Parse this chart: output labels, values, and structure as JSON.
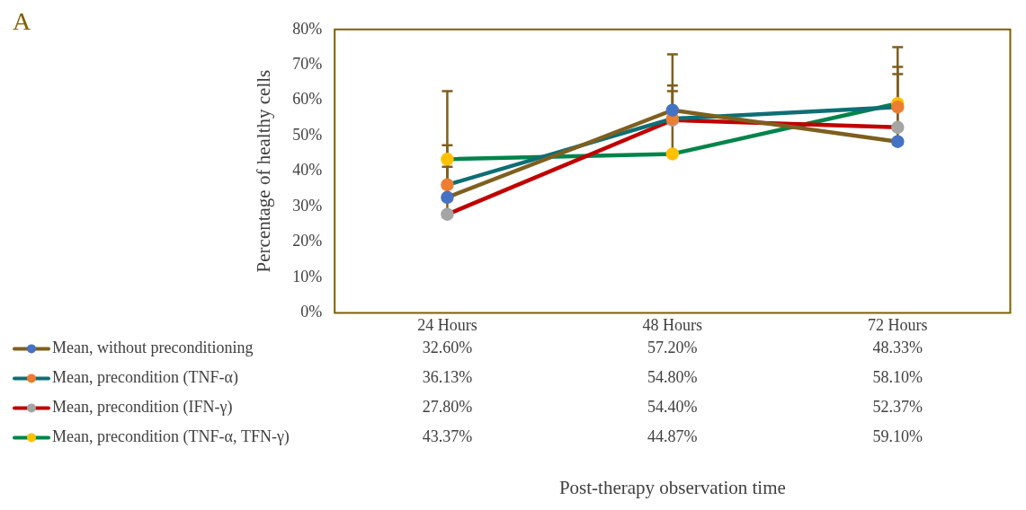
{
  "chart_data": {
    "type": "line",
    "title": "A",
    "ylabel": "Percentage of healthy cells",
    "annotations": [
      "Post-therapy observation time"
    ],
    "categories": [
      "24 Hours",
      "48 Hours",
      "72 Hours"
    ],
    "ylim": [
      0,
      80
    ],
    "yticks": [
      {
        "value": 0,
        "label": "0%"
      },
      {
        "value": 10,
        "label": "10%"
      },
      {
        "value": 20,
        "label": "20%"
      },
      {
        "value": 30,
        "label": "30%"
      },
      {
        "value": 40,
        "label": "40%"
      },
      {
        "value": 50,
        "label": "50%"
      },
      {
        "value": 60,
        "label": "60%"
      },
      {
        "value": 70,
        "label": "70%"
      },
      {
        "value": 80,
        "label": "80%"
      }
    ],
    "grid": false,
    "legend": "bottom left",
    "marker": "circle",
    "line_style": "solid",
    "series": [
      {
        "name": "Mean, without preconditioning",
        "color": "#7f5f1f",
        "colors": [
          "#4472c4",
          "#4472c4",
          "#4472c4"
        ],
        "values": [
          32.6,
          57.2,
          48.33
        ],
        "value_labels": [
          "32.60%",
          "57.20%",
          "48.33%"
        ],
        "errors": [
          [
            32.6,
            41.2
          ],
          [
            57.2,
            64.2
          ],
          [
            48.33,
            75.0
          ]
        ]
      },
      {
        "name": "Mean, precondition (TNF-α)",
        "color": "#0e6e74",
        "colors": [
          "#ed7d31",
          "#ed7d31",
          "#ed7d31"
        ],
        "values": [
          36.13,
          54.8,
          58.1
        ],
        "value_labels": [
          "36.13%",
          "54.80%",
          "58.10%"
        ],
        "errors": [
          [
            36.13,
            47.3
          ],
          [
            54.8,
            62.6
          ],
          [
            58.1,
            69.4
          ]
        ]
      },
      {
        "name": "Mean, precondition (IFN-γ)",
        "color": "#c00000",
        "colors": [
          "#a5a5a5",
          "#a5a5a5",
          "#a5a5a5"
        ],
        "values": [
          27.8,
          54.4,
          52.37
        ],
        "value_labels": [
          "27.80%",
          "54.40%",
          "52.37%"
        ],
        "errors": [
          [
            27.8,
            62.6
          ],
          null,
          [
            52.37,
            67.4
          ]
        ]
      },
      {
        "name": "Mean, precondition (TNF-α, TFN-γ)",
        "color": "#00844a",
        "colors": [
          "#ffc000",
          "#ffc000",
          "#ffc000"
        ],
        "values": [
          43.37,
          44.87,
          59.1
        ],
        "value_labels": [
          "43.37%",
          "44.87%",
          "59.10%"
        ],
        "errors": [
          null,
          [
            44.87,
            73.0
          ],
          null
        ]
      }
    ]
  }
}
